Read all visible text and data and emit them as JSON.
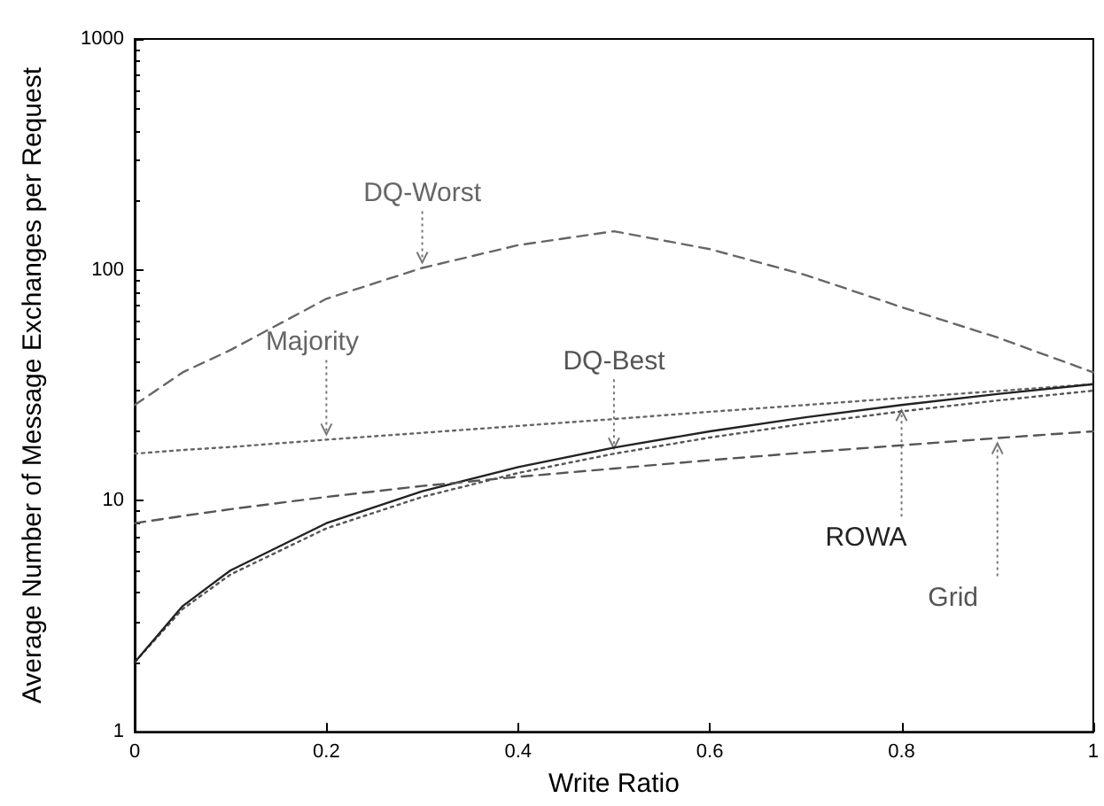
{
  "chart_data": {
    "type": "line",
    "xlabel": "Write Ratio",
    "ylabel": "Average Number of Message Exchanges per Request",
    "x": [
      0,
      0.05,
      0.1,
      0.2,
      0.3,
      0.4,
      0.5,
      0.6,
      0.7,
      0.8,
      0.9,
      1
    ],
    "series": [
      {
        "name": "DQ-Worst",
        "color": "#666666",
        "line_style": "dashed",
        "values": [
          26,
          36,
          45,
          75,
          102,
          128,
          147,
          123,
          95,
          69,
          51,
          36
        ]
      },
      {
        "name": "Majority",
        "color": "#666666",
        "line_style": "dotted",
        "values": [
          16,
          16.6,
          17.1,
          18.4,
          19.7,
          21.1,
          22.6,
          24.3,
          26,
          27.9,
          29.9,
          32
        ]
      },
      {
        "name": "DQ-Best",
        "color": "#555555",
        "line_style": "dotted",
        "values": [
          2,
          3.4,
          4.8,
          7.6,
          10.4,
          13.2,
          16,
          18.8,
          21.6,
          24.4,
          27.2,
          30
        ]
      },
      {
        "name": "ROWA",
        "color": "#222222",
        "line_style": "solid",
        "values": [
          2,
          3.5,
          5,
          8,
          11,
          14,
          17,
          20,
          23,
          26,
          29,
          32
        ]
      },
      {
        "name": "Grid",
        "color": "#555555",
        "line_style": "dashed",
        "values": [
          8,
          8.6,
          9.2,
          10.4,
          11.6,
          12.7,
          13.8,
          15,
          16.2,
          17.4,
          18.7,
          20
        ]
      }
    ],
    "xlim": [
      0,
      1
    ],
    "xticks": [
      0,
      0.2,
      0.4,
      0.6,
      0.8,
      1
    ],
    "ylim": [
      1,
      1000
    ],
    "yticks": [
      1,
      10,
      100,
      1000
    ],
    "log": "y",
    "grid": false,
    "legend": false,
    "marker": "none"
  }
}
